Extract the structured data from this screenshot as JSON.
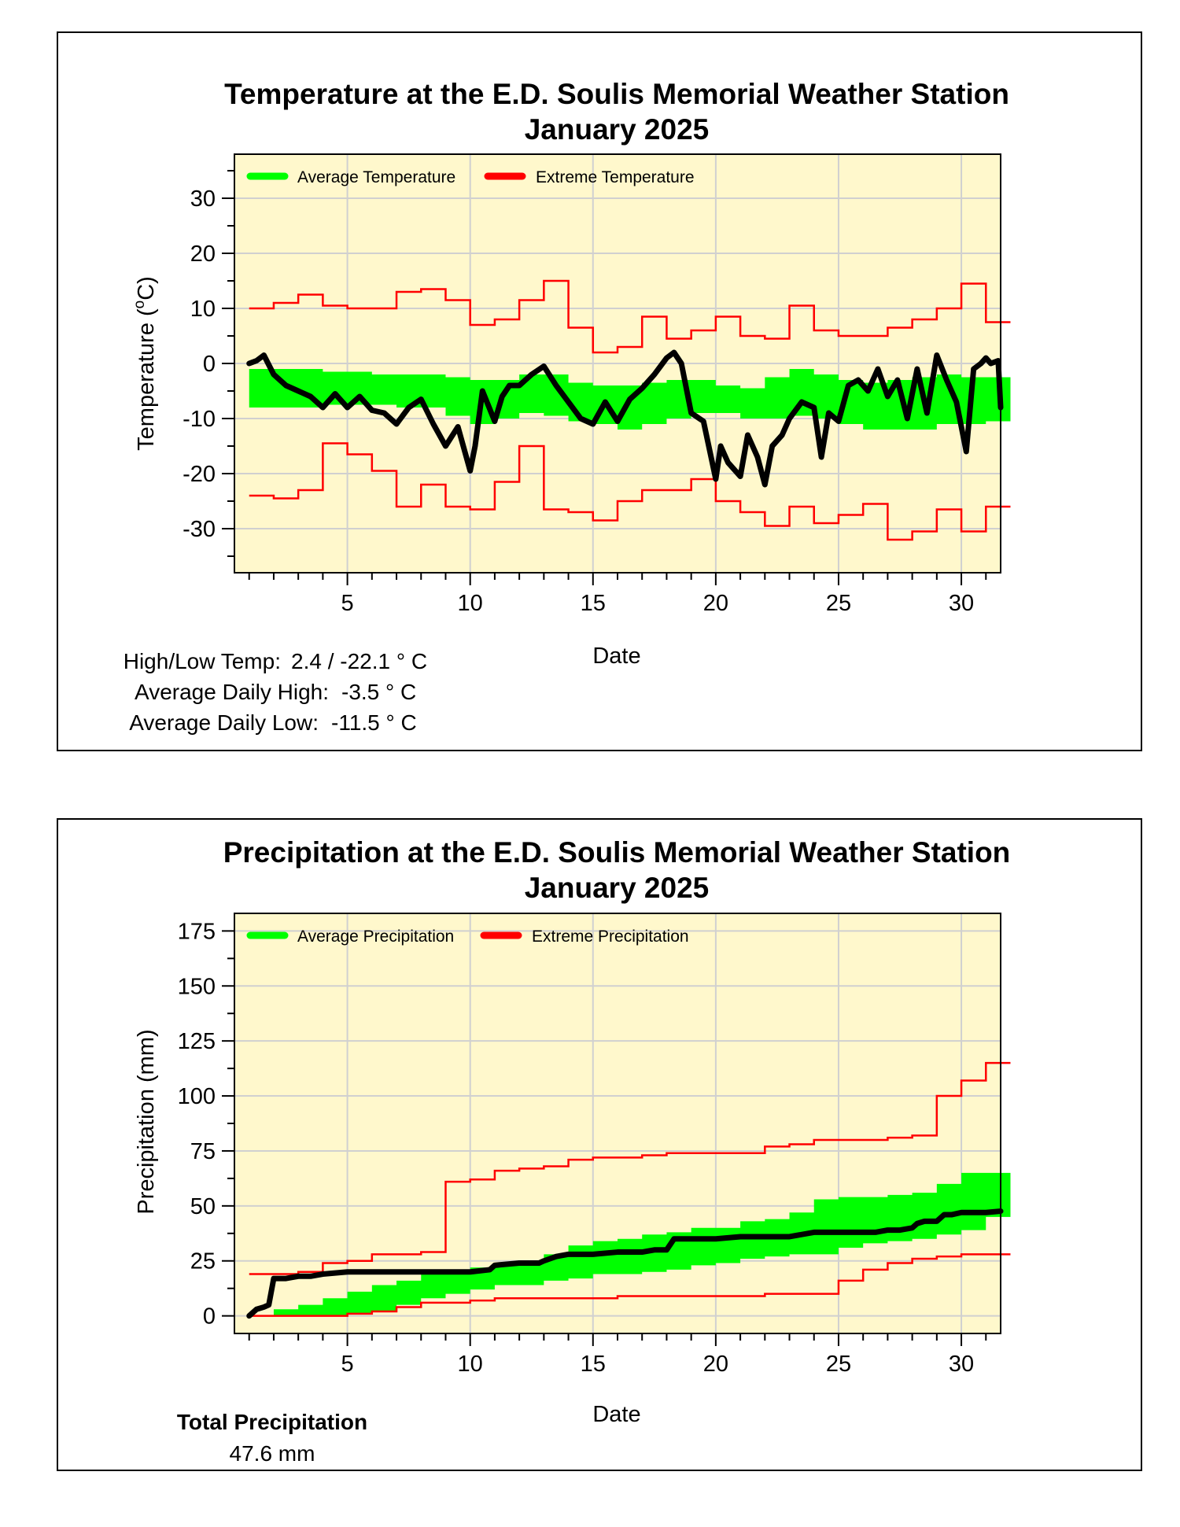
{
  "chart_data": [
    {
      "type": "line",
      "title": "Temperature at the E.D. Soulis Memorial Weather Station",
      "subtitle": "January 2025",
      "xlabel": "Date",
      "ylabel": "Temperature (°C)",
      "ylabel_prefix": "Temperature (",
      "ylabel_degree": "o",
      "ylabel_suffix": "C)",
      "xlim": [
        0.4,
        31.6
      ],
      "ylim": [
        -38,
        38
      ],
      "xticks": [
        "5",
        "10",
        "15",
        "20",
        "25",
        "30"
      ],
      "yticks": [
        "30",
        "20",
        "10",
        "0",
        "-10",
        "-20",
        "-30"
      ],
      "grid": true,
      "legend_position": "top-left",
      "legend": [
        "Average Temperature",
        "Extreme Temperature"
      ],
      "colors": {
        "average": "#00ff00",
        "extreme": "#ff0000",
        "observed": "#000000",
        "background": "#fff8cc",
        "grid": "#d0d0d0"
      },
      "average_band": {
        "days": [
          1,
          2,
          3,
          4,
          5,
          6,
          7,
          8,
          9,
          10,
          11,
          12,
          13,
          14,
          15,
          16,
          17,
          18,
          19,
          20,
          21,
          22,
          23,
          24,
          25,
          26,
          27,
          28,
          29,
          30,
          31
        ],
        "upper": [
          -1,
          -1,
          -1,
          -1.5,
          -1.5,
          -2,
          -2,
          -2,
          -2.5,
          -3,
          -3,
          -2,
          -2,
          -3.5,
          -4,
          -4,
          -3.5,
          -3,
          -3,
          -4,
          -4.5,
          -2.5,
          -1,
          -2,
          -3,
          -3.5,
          -3,
          -2.5,
          -2,
          -2.5,
          -2.5
        ],
        "lower": [
          -8,
          -8,
          -8,
          -7.5,
          -7.5,
          -7.5,
          -8,
          -8,
          -9.5,
          -11,
          -10,
          -9,
          -9.5,
          -10.5,
          -11,
          -12,
          -11,
          -10,
          -9,
          -9,
          -10,
          -10,
          -9.5,
          -10,
          -11,
          -12,
          -12,
          -12,
          -11,
          -11,
          -10.5
        ]
      },
      "extreme_max": [
        10,
        11,
        12.5,
        10.5,
        10,
        10,
        13,
        13.5,
        11.5,
        7,
        8,
        11.5,
        15,
        6.5,
        2,
        3,
        8.5,
        4.5,
        6,
        8.5,
        5,
        4.5,
        10.5,
        6,
        5,
        5,
        6.5,
        8,
        10,
        14.5,
        7.5
      ],
      "extreme_min": [
        -24,
        -24.5,
        -23,
        -14.5,
        -16.5,
        -19.5,
        -26,
        -22,
        -26,
        -26.5,
        -21.5,
        -15,
        -26.5,
        -27,
        -28.5,
        -25,
        -23,
        -23,
        -21,
        -25,
        -27,
        -29.5,
        -26,
        -29,
        -27.5,
        -25.5,
        -32,
        -30.5,
        -26.5,
        -30.5,
        -26
      ],
      "observed": {
        "x": [
          1,
          1.3,
          1.6,
          2,
          2.5,
          3,
          3.5,
          4,
          4.5,
          5,
          5.5,
          6,
          6.5,
          7,
          7.5,
          8,
          8.5,
          9,
          9.5,
          10,
          10.2,
          10.5,
          11,
          11.3,
          11.6,
          12,
          12.5,
          13,
          13.5,
          14,
          14.5,
          15,
          15.5,
          16,
          16.5,
          17,
          17.5,
          18,
          18.3,
          18.6,
          19,
          19.5,
          20,
          20.2,
          20.5,
          21,
          21.3,
          21.7,
          22,
          22.3,
          22.7,
          23,
          23.5,
          24,
          24.3,
          24.6,
          25,
          25.4,
          25.8,
          26.2,
          26.6,
          27,
          27.4,
          27.8,
          28.2,
          28.6,
          29,
          29.4,
          29.8,
          30.2,
          30.5,
          30.8,
          31,
          31.2,
          31.5,
          31.6
        ],
        "y": [
          0,
          0.5,
          1.5,
          -2,
          -4,
          -5,
          -6,
          -8,
          -5.5,
          -8,
          -6,
          -8.5,
          -9,
          -11,
          -8,
          -6.5,
          -11,
          -15,
          -11.5,
          -19.5,
          -15,
          -5,
          -10.5,
          -6,
          -4,
          -4,
          -2,
          -0.5,
          -4,
          -7,
          -10,
          -11,
          -7,
          -10.5,
          -6.5,
          -4.5,
          -2,
          1,
          2,
          0,
          -9,
          -10.5,
          -21,
          -15,
          -18,
          -20.5,
          -13,
          -17,
          -22,
          -15,
          -13,
          -10,
          -7,
          -8,
          -17,
          -9,
          -10.5,
          -4,
          -3,
          -5,
          -1,
          -6,
          -3,
          -10,
          -1,
          -9,
          1.5,
          -3,
          -7,
          -16,
          -1,
          0,
          1,
          0,
          0.5,
          -8
        ]
      },
      "stats": {
        "high_low_label": "High/Low Temp:",
        "high_low_value": "2.4 / -22.1 ° C",
        "avg_high_label": "Average Daily High:",
        "avg_high_value": "-3.5 ° C",
        "avg_low_label": "Average Daily Low:",
        "avg_low_value": "-11.5 ° C"
      }
    },
    {
      "type": "line",
      "title": "Precipitation at the E.D. Soulis Memorial Weather Station",
      "subtitle": "January 2025",
      "xlabel": "Date",
      "ylabel": "Precipitation (mm)",
      "xlim": [
        0.4,
        31.6
      ],
      "ylim": [
        -8,
        183
      ],
      "xticks": [
        "5",
        "10",
        "15",
        "20",
        "25",
        "30"
      ],
      "yticks": [
        "175",
        "150",
        "125",
        "100",
        "75",
        "50",
        "25",
        "0"
      ],
      "grid": true,
      "legend_position": "top-left",
      "legend": [
        "Average Precipitation",
        "Extreme Precipitation"
      ],
      "colors": {
        "average": "#00ff00",
        "extreme": "#ff0000",
        "observed": "#000000",
        "background": "#fff8cc",
        "grid": "#d0d0d0"
      },
      "average_band": {
        "days": [
          1,
          2,
          3,
          4,
          5,
          6,
          7,
          8,
          9,
          10,
          11,
          12,
          13,
          14,
          15,
          16,
          17,
          18,
          19,
          20,
          21,
          22,
          23,
          24,
          25,
          26,
          27,
          28,
          29,
          30,
          31
        ],
        "upper": [
          0,
          3,
          5,
          8,
          11,
          14,
          16,
          19,
          21,
          22,
          24,
          25,
          28,
          32,
          34,
          35,
          37,
          38,
          40,
          40,
          43,
          44,
          47,
          53,
          54,
          54,
          55,
          56,
          60,
          65,
          65
        ],
        "lower": [
          0,
          0,
          0,
          0,
          1,
          2,
          5,
          8,
          10,
          12,
          14,
          14,
          16,
          17,
          19,
          19,
          20,
          21,
          23,
          24,
          26,
          27,
          28,
          28,
          31,
          33,
          34,
          35,
          37,
          39,
          45
        ]
      },
      "extreme_max": [
        19,
        19,
        20,
        24,
        25,
        28,
        28,
        29,
        61,
        62,
        66,
        67,
        68,
        71,
        72,
        72,
        73,
        74,
        74,
        74,
        74,
        77,
        78,
        80,
        80,
        80,
        81,
        82,
        100,
        107,
        115
      ],
      "extreme_min": [
        0,
        0,
        0,
        0,
        1,
        2,
        4,
        6,
        6,
        7,
        8,
        8,
        8,
        8,
        8,
        9,
        9,
        9,
        9,
        9,
        9,
        10,
        10,
        10,
        16,
        21,
        24,
        26,
        27,
        28,
        28
      ],
      "observed": {
        "x": [
          1,
          1.3,
          1.6,
          1.8,
          2,
          2.5,
          3,
          3.5,
          4,
          5,
          6,
          7,
          8,
          9,
          10,
          10.8,
          11,
          12,
          12.8,
          13,
          13.5,
          14,
          15,
          16,
          16.5,
          17,
          17.5,
          18,
          18.3,
          19,
          20,
          21,
          22,
          22.5,
          23,
          24,
          25,
          26,
          26.5,
          27,
          27.5,
          28,
          28.2,
          28.5,
          29,
          29.3,
          29.6,
          30,
          31,
          31.6
        ],
        "y": [
          0,
          3,
          4,
          5,
          17,
          17,
          18,
          18,
          19,
          20,
          20,
          20,
          20,
          20,
          20,
          21,
          23,
          24,
          24,
          25,
          27,
          28,
          28,
          29,
          29,
          29,
          30,
          30,
          35,
          35,
          35,
          36,
          36,
          36,
          36,
          38,
          38,
          38,
          38,
          39,
          39,
          40,
          42,
          43,
          43,
          46,
          46,
          47,
          47,
          47.6
        ]
      },
      "stats": {
        "total_label": "Total Precipitation",
        "total_value": "47.6 mm"
      }
    }
  ]
}
